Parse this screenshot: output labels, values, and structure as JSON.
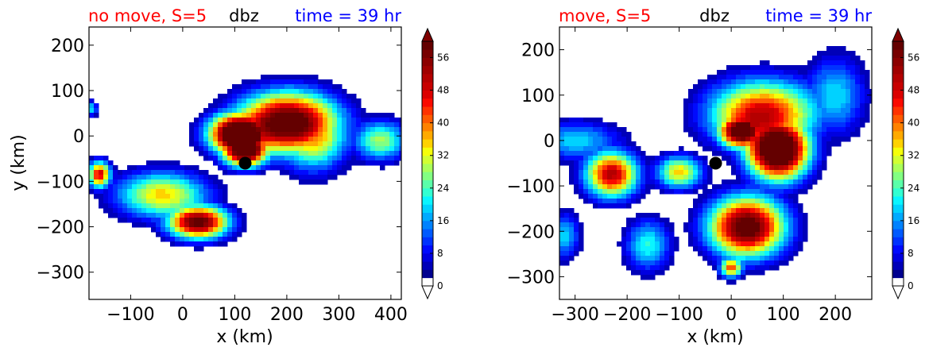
{
  "chart_data": [
    {
      "type": "heatmap",
      "title_left": "no move, S=5",
      "title_center": "dbz",
      "title_right": "time = 39 hr",
      "title_colors": {
        "left": "#ff0000",
        "center": "#000000",
        "right": "#0000ff"
      },
      "xlabel": "x (km)",
      "ylabel": "y (km)",
      "xlim": [
        -180,
        420
      ],
      "ylim": [
        -360,
        240
      ],
      "xticks": [
        -100,
        0,
        100,
        200,
        300,
        400
      ],
      "yticks": [
        200,
        100,
        0,
        -100,
        -200,
        -300
      ],
      "marker": {
        "x": 120,
        "y": -60
      },
      "blobs": [
        {
          "x": 200,
          "y": 30,
          "sx": 65,
          "sy": 45,
          "peak": 40
        },
        {
          "x": 110,
          "y": 5,
          "sx": 40,
          "sy": 30,
          "peak": 48
        },
        {
          "x": 120,
          "y": -30,
          "sx": 30,
          "sy": 25,
          "peak": 44
        },
        {
          "x": 250,
          "y": 0,
          "sx": 45,
          "sy": 50,
          "peak": 22
        },
        {
          "x": 380,
          "y": -10,
          "sx": 35,
          "sy": 30,
          "peak": 18
        },
        {
          "x": -160,
          "y": -85,
          "sx": 15,
          "sy": 20,
          "peak": 30
        },
        {
          "x": -40,
          "y": -130,
          "sx": 60,
          "sy": 35,
          "peak": 22
        },
        {
          "x": 30,
          "y": -190,
          "sx": 40,
          "sy": 25,
          "peak": 38
        },
        {
          "x": -175,
          "y": 60,
          "sx": 8,
          "sy": 12,
          "peak": 12
        }
      ]
    },
    {
      "type": "heatmap",
      "title_left": "move, S=5",
      "title_center": "dbz",
      "title_right": "time = 39 hr",
      "title_colors": {
        "left": "#ff0000",
        "center": "#000000",
        "right": "#0000ff"
      },
      "xlabel": "x (km)",
      "ylabel": "",
      "xlim": [
        -330,
        270
      ],
      "ylim": [
        -350,
        250
      ],
      "xticks": [
        -300,
        -200,
        -100,
        0,
        100,
        200
      ],
      "yticks": [
        200,
        100,
        0,
        -100,
        -200,
        -300
      ],
      "marker": {
        "x": -30,
        "y": -50
      },
      "blobs": [
        {
          "x": 60,
          "y": 60,
          "sx": 70,
          "sy": 50,
          "peak": 30
        },
        {
          "x": 90,
          "y": -20,
          "sx": 40,
          "sy": 45,
          "peak": 48
        },
        {
          "x": 20,
          "y": 20,
          "sx": 30,
          "sy": 25,
          "peak": 42
        },
        {
          "x": 200,
          "y": 100,
          "sx": 40,
          "sy": 60,
          "peak": 12
        },
        {
          "x": -300,
          "y": 0,
          "sx": 60,
          "sy": 30,
          "peak": 12
        },
        {
          "x": -230,
          "y": -75,
          "sx": 35,
          "sy": 35,
          "peak": 32
        },
        {
          "x": -100,
          "y": -70,
          "sx": 30,
          "sy": 25,
          "peak": 22
        },
        {
          "x": 30,
          "y": -190,
          "sx": 50,
          "sy": 45,
          "peak": 40
        },
        {
          "x": 0,
          "y": -280,
          "sx": 15,
          "sy": 15,
          "peak": 26
        },
        {
          "x": -160,
          "y": -230,
          "sx": 30,
          "sy": 40,
          "peak": 14
        },
        {
          "x": -320,
          "y": -210,
          "sx": 20,
          "sy": 35,
          "peak": 12
        }
      ]
    }
  ],
  "colorbar": {
    "min": 0,
    "max": 60,
    "step": 2,
    "ticks": [
      0,
      8,
      16,
      24,
      32,
      40,
      48,
      56
    ],
    "colors": [
      "#ffffff",
      "#00008f",
      "#0000b8",
      "#0000e0",
      "#000aff",
      "#0032ff",
      "#005aff",
      "#0082ff",
      "#00aaff",
      "#00d2ff",
      "#0af5ff",
      "#32ffd2",
      "#5affaa",
      "#82ff82",
      "#aaff5a",
      "#d2ff32",
      "#f5ff0a",
      "#ffd200",
      "#ffaa00",
      "#ff8200",
      "#ff5a00",
      "#ff3200",
      "#fa0a00",
      "#dc0000",
      "#c80000",
      "#b40000",
      "#a00000",
      "#8c0000",
      "#780000",
      "#640000"
    ],
    "over_color": "#800000",
    "under_color": "#ffffff"
  }
}
